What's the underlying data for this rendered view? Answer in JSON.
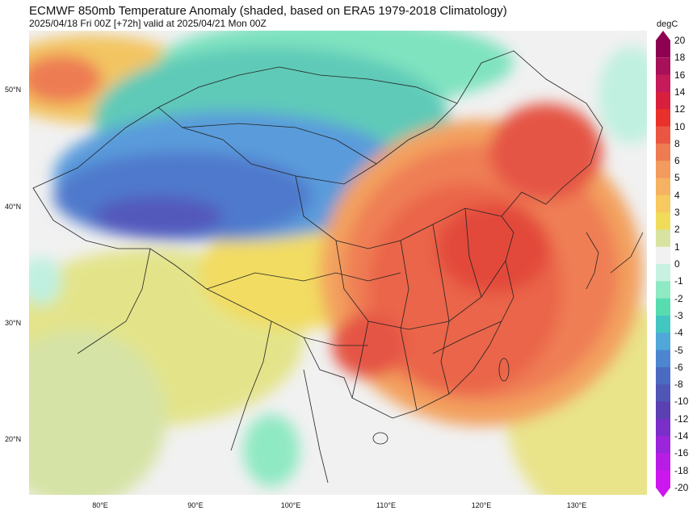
{
  "title": "ECMWF 850mb Temperature Anomaly (shaded, based on ERA5 1979-2018 Climatology)",
  "subtitle": "2025/04/18 Fri 00Z [+72h] valid at 2025/04/21 Mon 00Z",
  "lat_labels": [
    "50°N",
    "40°N",
    "30°N",
    "20°N"
  ],
  "lon_labels": [
    "80°E",
    "90°E",
    "100°E",
    "110°E",
    "120°E",
    "130°E"
  ],
  "colorbar": {
    "unit": "degC",
    "levels": [
      "20",
      "18",
      "16",
      "14",
      "12",
      "10",
      "8",
      "6",
      "5",
      "4",
      "3",
      "2",
      "1",
      "0",
      "-1",
      "-2",
      "-3",
      "-4",
      "-5",
      "-6",
      "-8",
      "-10",
      "-12",
      "-14",
      "-16",
      "-18",
      "-20"
    ],
    "colors": [
      "#8e0152",
      "#a8105a",
      "#c51b5a",
      "#d8203e",
      "#e8312a",
      "#ea5641",
      "#ef7b52",
      "#f39a5e",
      "#f5b262",
      "#f7c95e",
      "#f0dc5a",
      "#d9e3a0",
      "#f1f1f1",
      "#c9f1e1",
      "#8fe9c3",
      "#57dcb0",
      "#44c6c0",
      "#4fa8d8",
      "#4c86d1",
      "#4b6bc2",
      "#4f56b6",
      "#5a40b0",
      "#7a2fc8",
      "#9b25d9",
      "#b81de6",
      "#cc18ee"
    ]
  }
}
